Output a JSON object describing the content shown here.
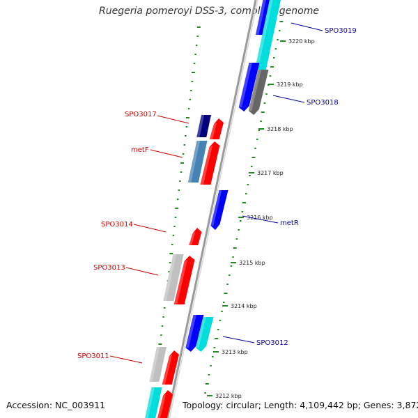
{
  "title": "Ruegeria pomeroyi DSS-3, complete genome",
  "footer": {
    "accession": "Accession: NC_003911",
    "summary": "Topology: circular; Length: 4,109,442 bp; Genes: 3,872"
  },
  "colors": {
    "forward_label": "#cc0000",
    "reverse_label": "#000099",
    "gc_dots": "#228B22",
    "backbone": "#888888",
    "red": "#ff0000",
    "blue": "#0000ff",
    "cyan": "#00dddd",
    "navy": "#000080",
    "steelblue": "#4682b4",
    "gray": "#c0c0c0",
    "dark_gray": "#666666"
  },
  "ticks": [
    "3220 kbp",
    "3219 kbp",
    "3218 kbp",
    "3217 kbp",
    "3216 kbp",
    "3215 kbp",
    "3214 kbp",
    "3213 kbp",
    "3212 kbp"
  ],
  "gene_labels": {
    "right": [
      "SPO3019",
      "SPO3018",
      "metR",
      "SPO3012"
    ],
    "left": [
      "SPO3017",
      "metF",
      "SPO3014",
      "SPO3013",
      "SPO3011"
    ]
  }
}
